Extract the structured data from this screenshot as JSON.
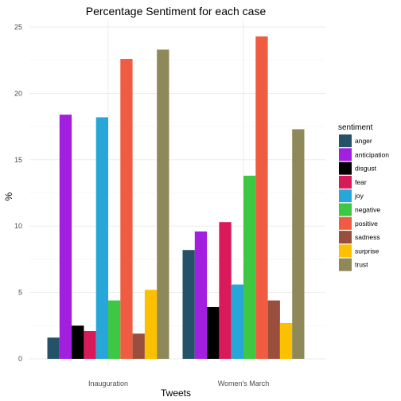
{
  "chart_data": {
    "type": "bar",
    "title": "Percentage Sentiment for each case",
    "xlabel": "Tweets",
    "ylabel": "%",
    "categories": [
      "Inauguration",
      "Women's March"
    ],
    "ylim": [
      0,
      25
    ],
    "yticks": [
      0,
      5,
      10,
      15,
      20,
      25
    ],
    "grid": true,
    "legend": {
      "title": "sentiment",
      "position": "right"
    },
    "series": [
      {
        "name": "anger",
        "color": "#245369",
        "values": [
          1.6,
          8.2
        ]
      },
      {
        "name": "anticipation",
        "color": "#a31fe0",
        "values": [
          18.4,
          9.6
        ]
      },
      {
        "name": "disgust",
        "color": "#000000",
        "values": [
          2.5,
          3.9
        ]
      },
      {
        "name": "fear",
        "color": "#d9195a",
        "values": [
          2.1,
          10.3
        ]
      },
      {
        "name": "joy",
        "color": "#27a7d8",
        "values": [
          18.2,
          5.6
        ]
      },
      {
        "name": "negative",
        "color": "#3ec743",
        "values": [
          4.4,
          13.8
        ]
      },
      {
        "name": "positive",
        "color": "#f05c41",
        "values": [
          22.6,
          24.3
        ]
      },
      {
        "name": "sadness",
        "color": "#9a4f3e",
        "values": [
          1.9,
          4.4
        ]
      },
      {
        "name": "surprise",
        "color": "#fbc000",
        "values": [
          5.2,
          2.7
        ]
      },
      {
        "name": "trust",
        "color": "#8f8858",
        "values": [
          23.3,
          17.3
        ]
      }
    ]
  }
}
